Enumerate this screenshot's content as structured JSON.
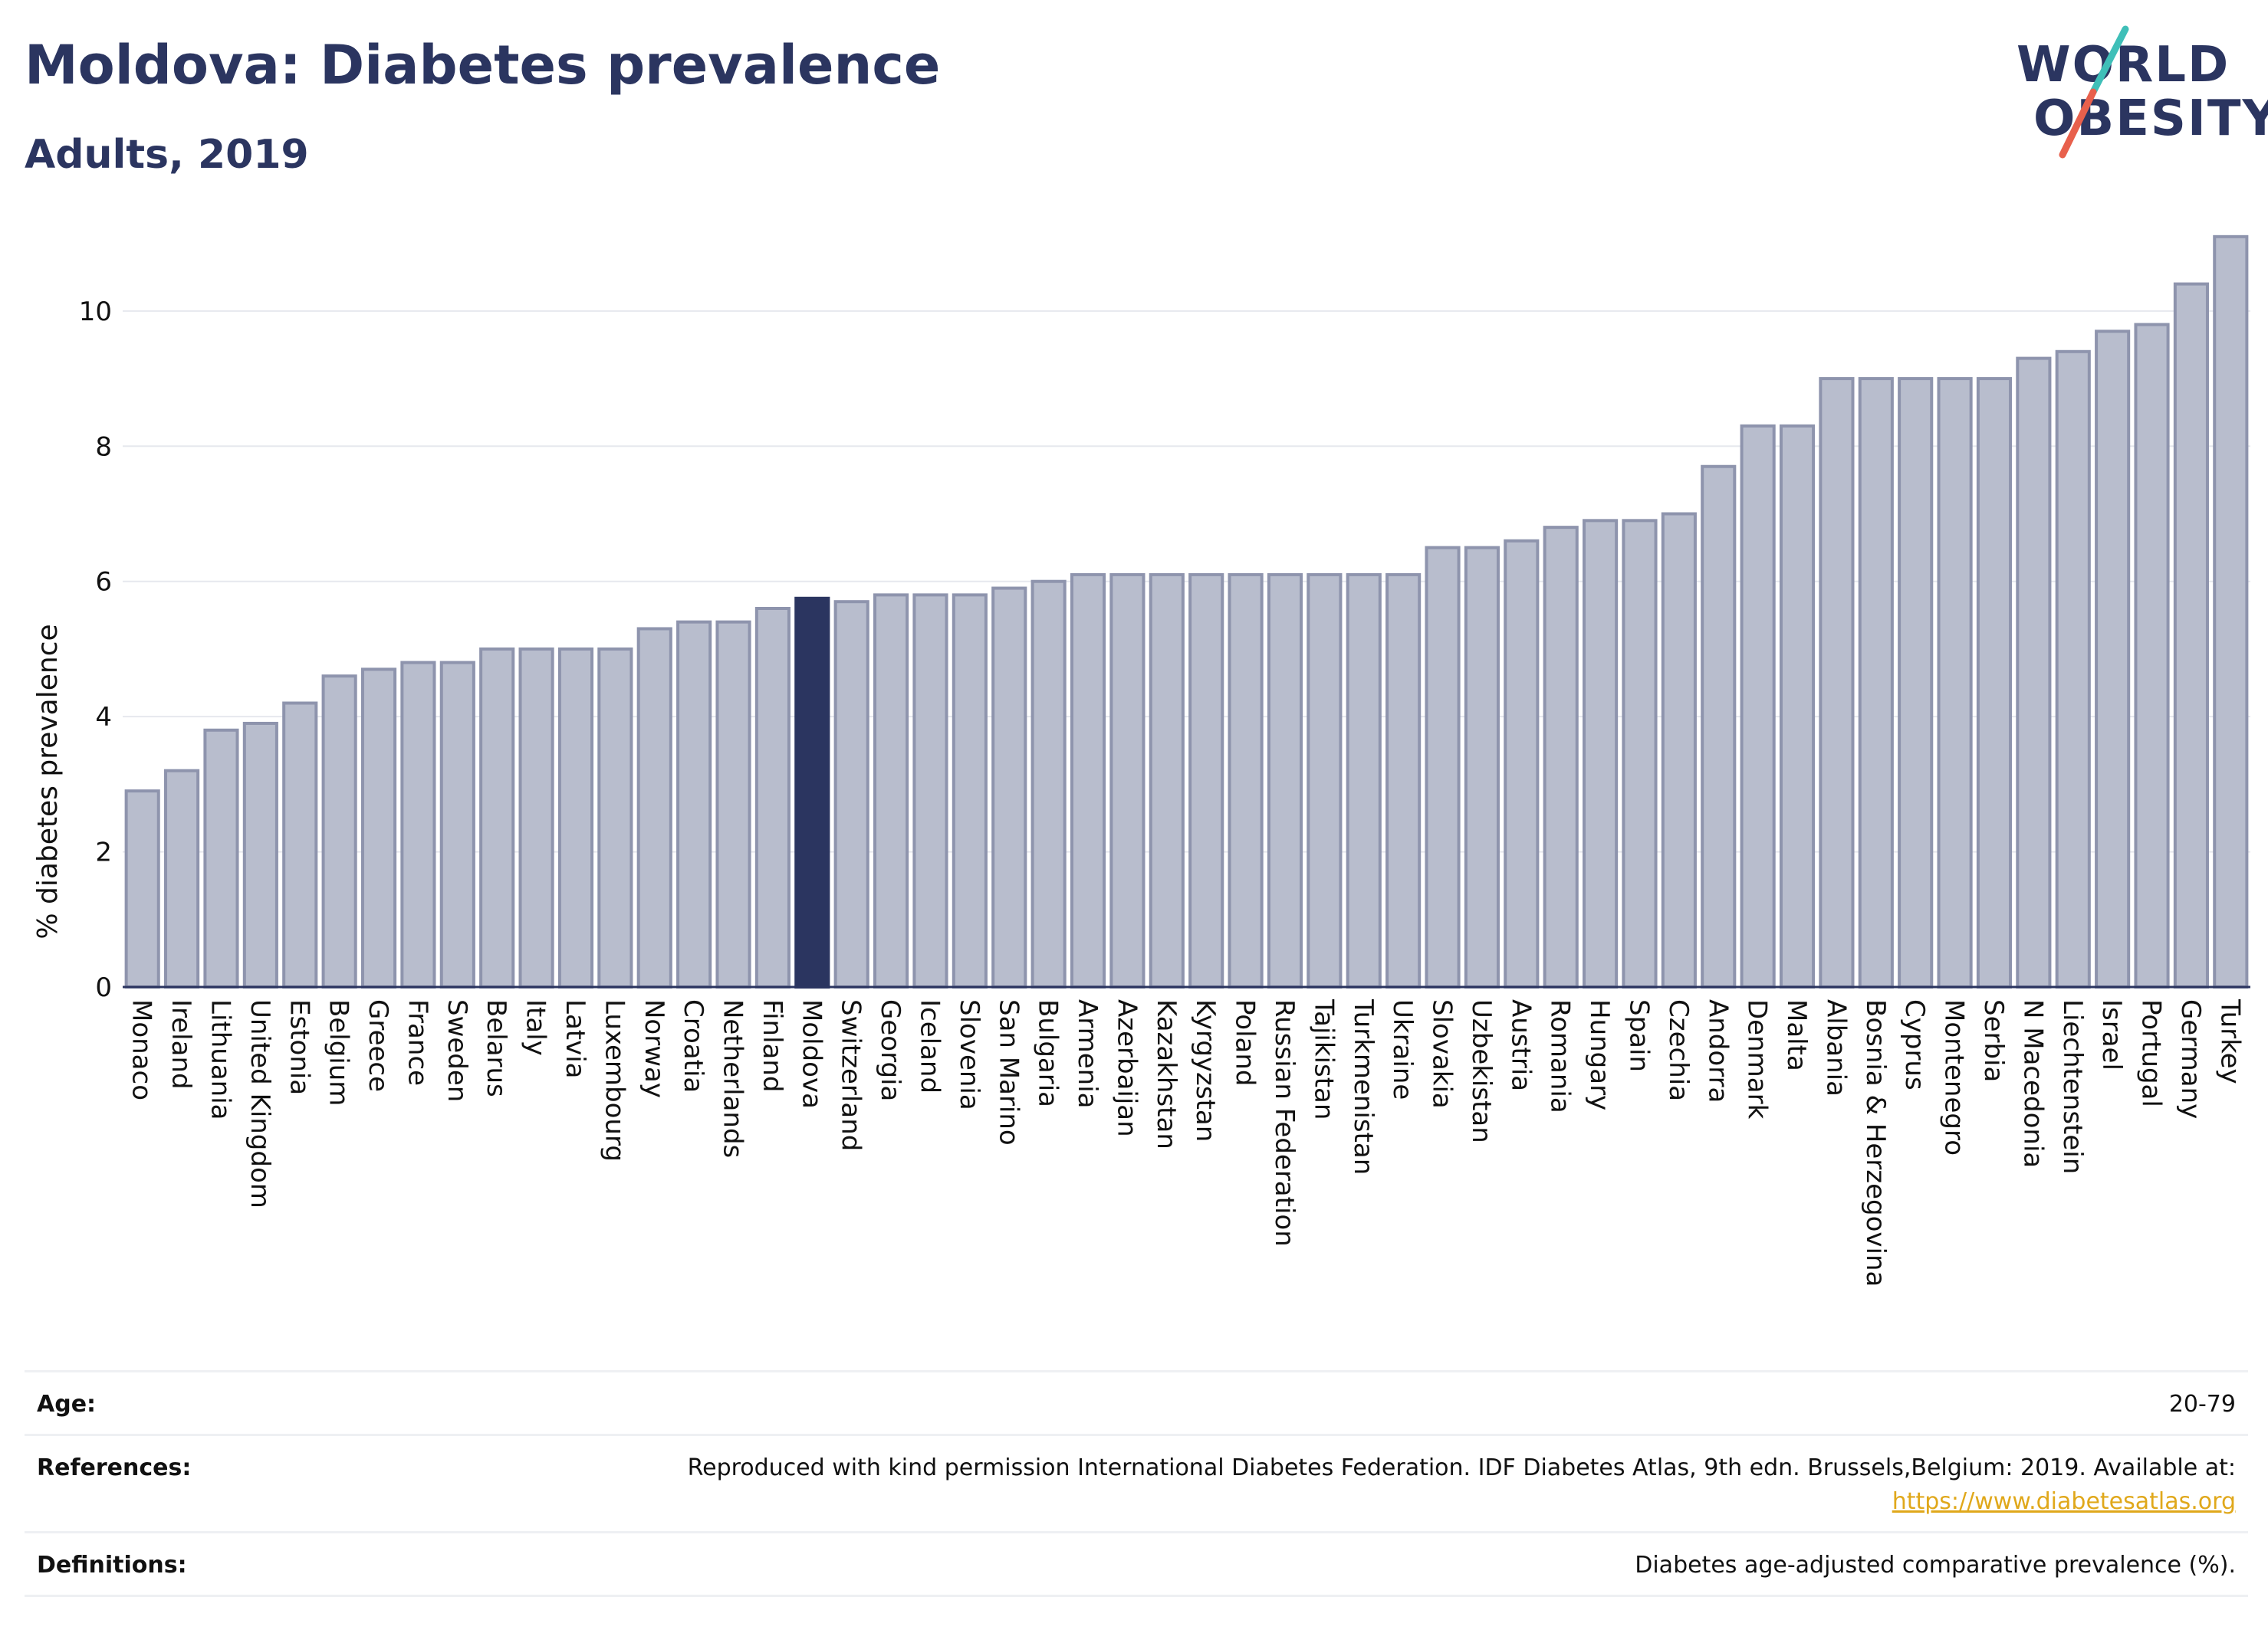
{
  "header": {
    "title": "Moldova: Diabetes prevalence",
    "subtitle": "Adults, 2019"
  },
  "logo": {
    "line1": "WORLD",
    "line2": "OBESITY",
    "colors": {
      "text": "#2b3560",
      "slash_top": "#3fbfb8",
      "slash_bottom": "#e8604c"
    }
  },
  "colors": {
    "bar": "#b8bdcd",
    "bar_border": "#8e94ad",
    "highlight": "#2b3560",
    "grid": "#e6e8ee",
    "axis": "#2b3560"
  },
  "chart_data": {
    "type": "bar",
    "ylabel": "% diabetes prevalence",
    "ylim": [
      0,
      11.2
    ],
    "yticks": [
      0,
      2,
      4,
      6,
      8,
      10
    ],
    "grid": true,
    "highlight": "Moldova",
    "categories": [
      "Monaco",
      "Ireland",
      "Lithuania",
      "United Kingdom",
      "Estonia",
      "Belgium",
      "Greece",
      "France",
      "Sweden",
      "Belarus",
      "Italy",
      "Latvia",
      "Luxembourg",
      "Norway",
      "Croatia",
      "Netherlands",
      "Finland",
      "Moldova",
      "Switzerland",
      "Georgia",
      "Iceland",
      "Slovenia",
      "San Marino",
      "Bulgaria",
      "Armenia",
      "Azerbaijan",
      "Kazakhstan",
      "Kyrgyzstan",
      "Poland",
      "Russian Federation",
      "Tajikistan",
      "Turkmenistan",
      "Ukraine",
      "Slovakia",
      "Uzbekistan",
      "Austria",
      "Romania",
      "Hungary",
      "Spain",
      "Czechia",
      "Andorra",
      "Denmark",
      "Malta",
      "Albania",
      "Bosnia & Herzegovina",
      "Cyprus",
      "Montenegro",
      "Serbia",
      "N Macedonia",
      "Liechtenstein",
      "Israel",
      "Portugal",
      "Germany",
      "Turkey"
    ],
    "values": [
      2.9,
      3.2,
      3.8,
      3.9,
      4.2,
      4.6,
      4.7,
      4.8,
      4.8,
      5.0,
      5.0,
      5.0,
      5.0,
      5.3,
      5.4,
      5.4,
      5.6,
      5.75,
      5.7,
      5.8,
      5.8,
      5.8,
      5.9,
      6.0,
      6.1,
      6.1,
      6.1,
      6.1,
      6.1,
      6.1,
      6.1,
      6.1,
      6.1,
      6.5,
      6.5,
      6.6,
      6.8,
      6.9,
      6.9,
      7.0,
      7.7,
      8.3,
      8.3,
      9.0,
      9.0,
      9.0,
      9.0,
      9.0,
      9.3,
      9.4,
      9.7,
      9.8,
      10.4,
      11.1
    ]
  },
  "info_table": [
    {
      "label": "Age:",
      "value": "20-79"
    },
    {
      "label": "References:",
      "value": "Reproduced with kind permission International Diabetes Federation. IDF Diabetes Atlas, 9th edn. Brussels,Belgium: 2019. Available at:",
      "link": "https://www.diabetesatlas.org"
    },
    {
      "label": "Definitions:",
      "value": "Diabetes age-adjusted comparative prevalence (%)."
    }
  ]
}
